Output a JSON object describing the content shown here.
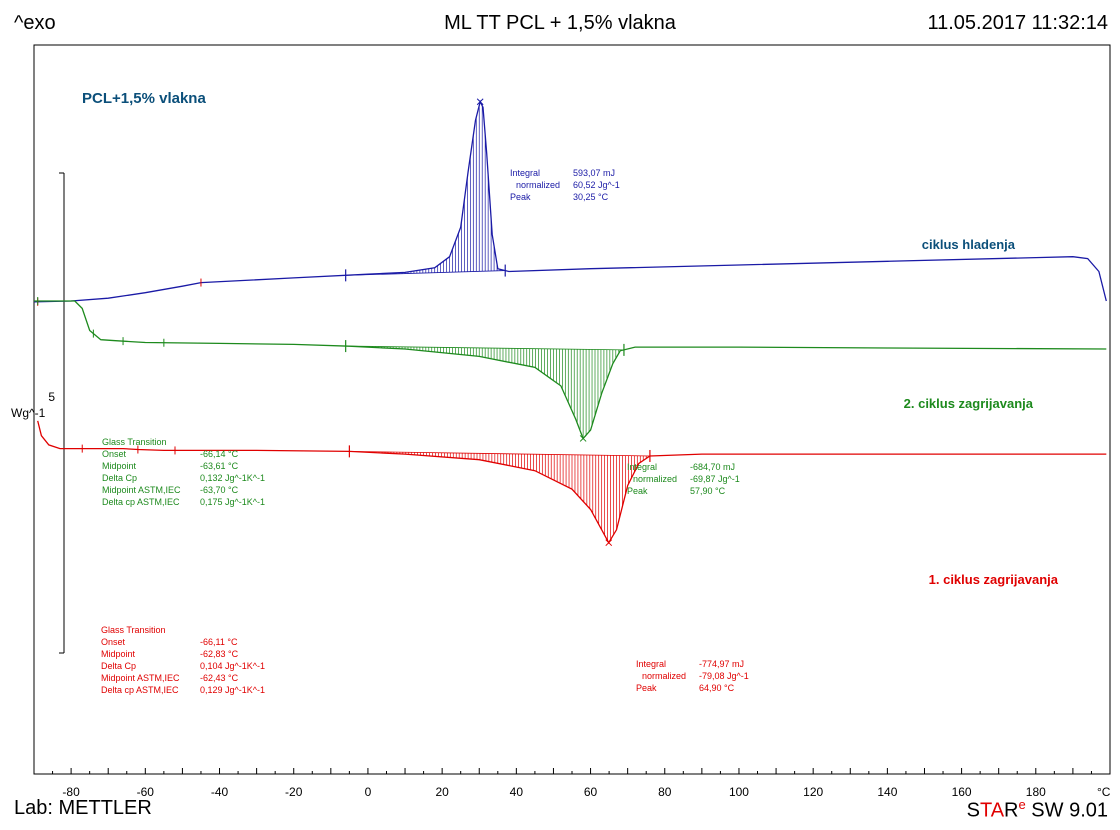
{
  "header": {
    "left": "^exo",
    "title": "ML TT PCL + 1,5% vlakna",
    "datetime": "11.05.2017 11:32:14"
  },
  "footer": {
    "lab": "Lab: METTLER",
    "software_s": "S",
    "software_ta": "TA",
    "software_r": "R",
    "software_e": "e",
    "software_version": " SW 9.01"
  },
  "colors": {
    "cooling": "#1a1aa6",
    "heating2": "#1d8a1d",
    "heating1": "#e00000",
    "label_blue": "#0b4f7a"
  },
  "chart_data": {
    "type": "line",
    "title": "PCL+1,5% vlakna",
    "xlabel": "°C",
    "xlim": [
      -90,
      200
    ],
    "x_ticks": [
      -80,
      -60,
      -40,
      -20,
      0,
      20,
      40,
      60,
      80,
      100,
      120,
      140,
      160,
      180
    ],
    "y_scale_label": "5",
    "y_unit": "Wg^-1",
    "series": [
      {
        "name": "ciklus hladenja",
        "points": [
          [
            -90,
            -0.05
          ],
          [
            -80,
            0
          ],
          [
            -70,
            0.15
          ],
          [
            -60,
            0.45
          ],
          [
            -50,
            0.8
          ],
          [
            -45,
            1.0
          ],
          [
            -20,
            1.25
          ],
          [
            0,
            1.45
          ],
          [
            10,
            1.55
          ],
          [
            18,
            1.8
          ],
          [
            22,
            2.4
          ],
          [
            25,
            4.0
          ],
          [
            27,
            7.0
          ],
          [
            29,
            9.8
          ],
          [
            30.25,
            10.8
          ],
          [
            31,
            10.5
          ],
          [
            32,
            8.0
          ],
          [
            33.5,
            3.6
          ],
          [
            35,
            1.75
          ],
          [
            38,
            1.6
          ],
          [
            60,
            1.75
          ],
          [
            100,
            1.95
          ],
          [
            140,
            2.15
          ],
          [
            180,
            2.35
          ],
          [
            190,
            2.4
          ],
          [
            194,
            2.3
          ],
          [
            197,
            1.6
          ],
          [
            199,
            0
          ]
        ],
        "peak_integral": {
          "label_integral": "Integral",
          "value_integral": "593,07 mJ",
          "label_normalized": "normalized",
          "value_normalized": "60,52 Jg^-1",
          "label_peak": "Peak",
          "value_peak": "30,25 °C"
        }
      },
      {
        "name": "2. ciklus zagrijavanja",
        "points": [
          [
            -90,
            0
          ],
          [
            -79,
            0
          ],
          [
            -77,
            -0.4
          ],
          [
            -75,
            -1.6
          ],
          [
            -72,
            -2.1
          ],
          [
            -68,
            -2.15
          ],
          [
            -64,
            -2.2
          ],
          [
            -60,
            -2.25
          ],
          [
            -40,
            -2.3
          ],
          [
            -20,
            -2.35
          ],
          [
            -5,
            -2.45
          ],
          [
            10,
            -2.6
          ],
          [
            30,
            -3.0
          ],
          [
            45,
            -3.6
          ],
          [
            52,
            -4.6
          ],
          [
            56,
            -6.4
          ],
          [
            58,
            -7.45
          ],
          [
            60,
            -7.0
          ],
          [
            63,
            -5.0
          ],
          [
            66,
            -3.4
          ],
          [
            68,
            -2.7
          ],
          [
            72,
            -2.5
          ],
          [
            100,
            -2.5
          ],
          [
            140,
            -2.55
          ],
          [
            199,
            -2.6
          ]
        ],
        "glass_transition": {
          "title": "Glass Transition",
          "label_onset": "Onset",
          "value_onset": "-66,14 °C",
          "label_midpoint": "Midpoint",
          "value_midpoint": "-63,61 °C",
          "label_delta_cp": "Delta Cp",
          "value_delta_cp": "0,132 Jg^-1K^-1",
          "label_mid_astm": "Midpoint ASTM,IEC",
          "value_mid_astm": "-63,70 °C",
          "label_dcp_astm": "Delta cp ASTM,IEC",
          "value_dcp_astm": "0,175 Jg^-1K^-1"
        },
        "peak_integral": {
          "label_integral": "Integral",
          "value_integral": "-684,70 mJ",
          "label_normalized": "normalized",
          "value_normalized": "-69,87 Jg^-1",
          "label_peak": "Peak",
          "value_peak": "57,90 °C"
        }
      },
      {
        "name": "1. ciklus zagrijavanja",
        "points": [
          [
            -89,
            -6.5
          ],
          [
            -88,
            -7.3
          ],
          [
            -86,
            -7.8
          ],
          [
            -83,
            -8.0
          ],
          [
            -75,
            -8.0
          ],
          [
            -66,
            -8.0
          ],
          [
            -62,
            -8.05
          ],
          [
            -55,
            -8.1
          ],
          [
            -30,
            -8.1
          ],
          [
            -5,
            -8.15
          ],
          [
            10,
            -8.3
          ],
          [
            30,
            -8.6
          ],
          [
            45,
            -9.2
          ],
          [
            55,
            -10.2
          ],
          [
            60,
            -11.3
          ],
          [
            63,
            -12.4
          ],
          [
            64.9,
            -13.1
          ],
          [
            67,
            -12.4
          ],
          [
            70,
            -10.0
          ],
          [
            73,
            -8.8
          ],
          [
            76,
            -8.4
          ],
          [
            90,
            -8.3
          ],
          [
            140,
            -8.3
          ],
          [
            199,
            -8.3
          ]
        ],
        "glass_transition": {
          "title": "Glass Transition",
          "label_onset": "Onset",
          "value_onset": "-66,11 °C",
          "label_midpoint": "Midpoint",
          "value_midpoint": "-62,83 °C",
          "label_delta_cp": "Delta Cp",
          "value_delta_cp": "0,104 Jg^-1K^-1",
          "label_mid_astm": "Midpoint ASTM,IEC",
          "value_mid_astm": "-62,43 °C",
          "label_dcp_astm": "Delta cp ASTM,IEC",
          "value_dcp_astm": "0,129 Jg^-1K^-1"
        },
        "peak_integral": {
          "label_integral": "Integral",
          "value_integral": "-774,97 mJ",
          "label_normalized": "normalized",
          "value_normalized": "-79,08 Jg^-1",
          "label_peak": "Peak",
          "value_peak": "64,90 °C"
        }
      }
    ],
    "integration_ranges": [
      [
        -6,
        37
      ],
      [
        -6,
        69
      ],
      [
        -5,
        76
      ]
    ]
  }
}
